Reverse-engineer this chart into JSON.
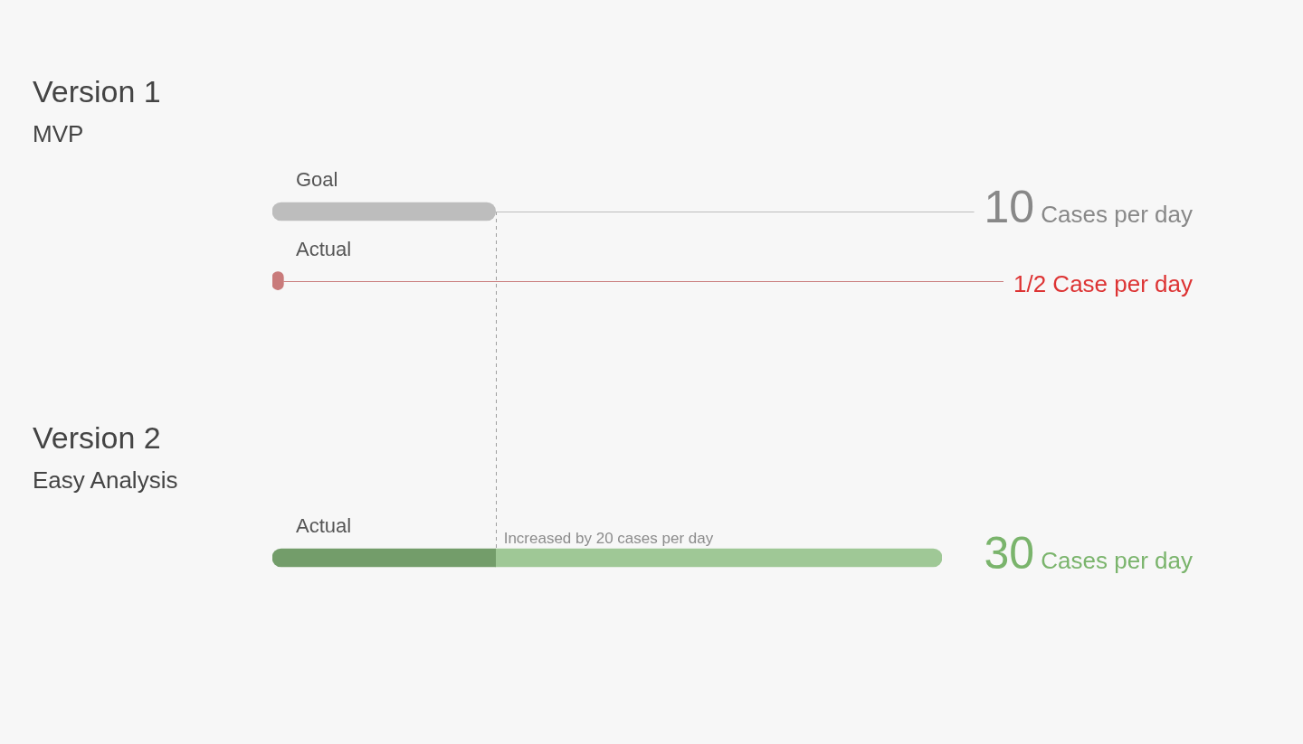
{
  "chart_data": {
    "type": "bar",
    "orientation": "horizontal",
    "stacked": true,
    "categories": [
      "Goal",
      "Actual",
      null,
      null,
      null,
      "Actual"
    ],
    "series": [
      {
        "values": [
          10,
          0.5,
          null,
          null,
          null,
          10
        ],
        "colors": [
          "#bdbdbd",
          "#c97b7b",
          null,
          null,
          null,
          "#739d6a"
        ],
        "value_labels": [
          "10",
          "1/2 Case per day",
          null,
          null,
          null,
          null
        ]
      },
      {
        "values": [
          null,
          null,
          null,
          null,
          null,
          20
        ],
        "color": "#9fc896",
        "value_labels": [
          null,
          null,
          null,
          null,
          null,
          "Increased by 20 cases per day"
        ]
      }
    ],
    "totals": [
      null,
      null,
      null,
      null,
      null,
      "30"
    ],
    "tick_labels": "y",
    "ref_lines": [
      {
        "axis": "x",
        "value": 10,
        "line_style": "dashed",
        "color": "#9e9e9e"
      }
    ],
    "annotations": [
      "Version 1",
      "MVP",
      "Cases per day",
      "Version 2",
      "Easy Analysis",
      "Cases per day"
    ]
  }
}
